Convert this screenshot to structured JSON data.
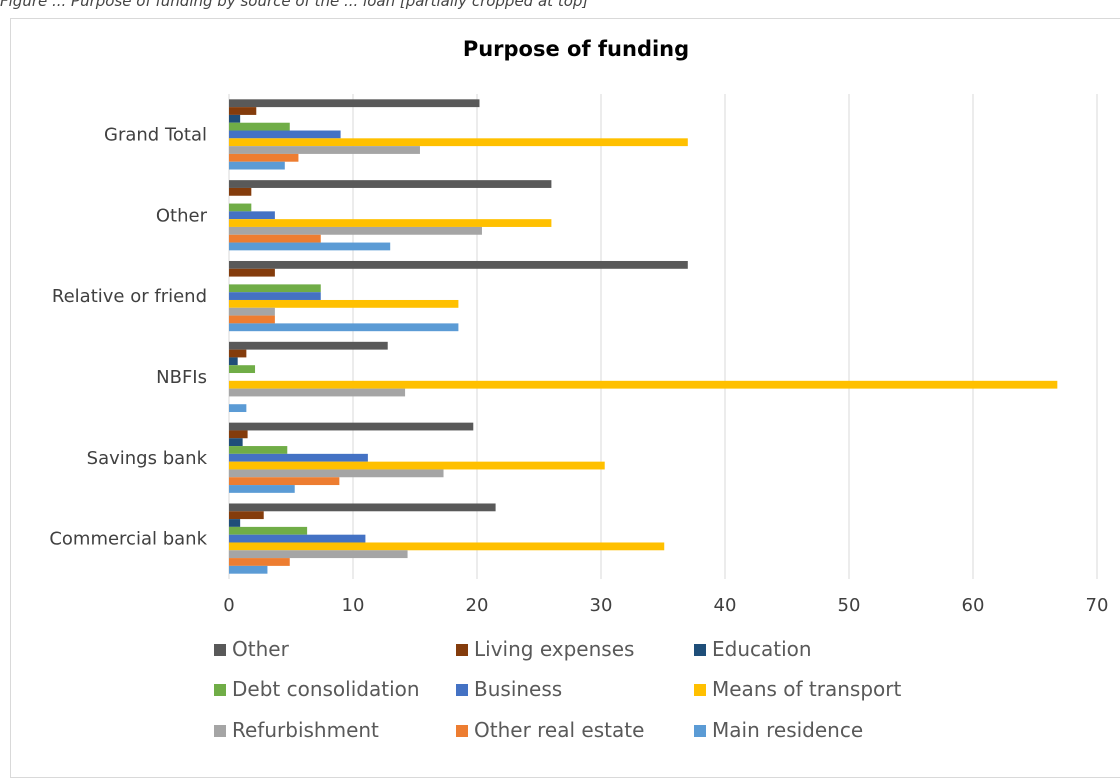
{
  "caption": "Figure ... Purpose of funding by source of the ... loan [partially cropped at top]",
  "chart_data": {
    "type": "bar",
    "orientation": "horizontal",
    "title": "Purpose of funding",
    "xlabel": "",
    "ylabel": "",
    "xlim": [
      0,
      70
    ],
    "xticks": [
      0,
      10,
      20,
      30,
      40,
      50,
      60,
      70
    ],
    "grid": "vertical",
    "legend_position": "bottom",
    "categories": [
      "Grand Total",
      "Other",
      "Relative or friend",
      "NBFIs",
      "Savings bank",
      "Commercial bank"
    ],
    "series": [
      {
        "name": "Other",
        "color": "#595959",
        "values": [
          20.2,
          26.0,
          37.0,
          12.8,
          19.7,
          21.5
        ]
      },
      {
        "name": "Living expenses",
        "color": "#843c0c",
        "values": [
          2.2,
          1.8,
          3.7,
          1.4,
          1.5,
          2.8
        ]
      },
      {
        "name": "Education",
        "color": "#1f4e79",
        "values": [
          0.9,
          0.0,
          0.0,
          0.7,
          1.1,
          0.9
        ]
      },
      {
        "name": "Debt consolidation",
        "color": "#70ad47",
        "values": [
          4.9,
          1.8,
          7.4,
          2.1,
          4.7,
          6.3
        ]
      },
      {
        "name": "Business",
        "color": "#4472c4",
        "values": [
          9.0,
          3.7,
          7.4,
          0.0,
          11.2,
          11.0
        ]
      },
      {
        "name": "Means of transport",
        "color": "#ffc000",
        "values": [
          37.0,
          26.0,
          18.5,
          66.8,
          30.3,
          35.1
        ]
      },
      {
        "name": "Refurbishment",
        "color": "#a5a5a5",
        "values": [
          15.4,
          20.4,
          3.7,
          14.2,
          17.3,
          14.4
        ]
      },
      {
        "name": "Other real estate",
        "color": "#ed7d31",
        "values": [
          5.6,
          7.4,
          3.7,
          0.0,
          8.9,
          4.9
        ]
      },
      {
        "name": "Main residence",
        "color": "#5b9bd5",
        "values": [
          4.5,
          13.0,
          18.5,
          1.4,
          5.3,
          3.1
        ]
      }
    ]
  }
}
